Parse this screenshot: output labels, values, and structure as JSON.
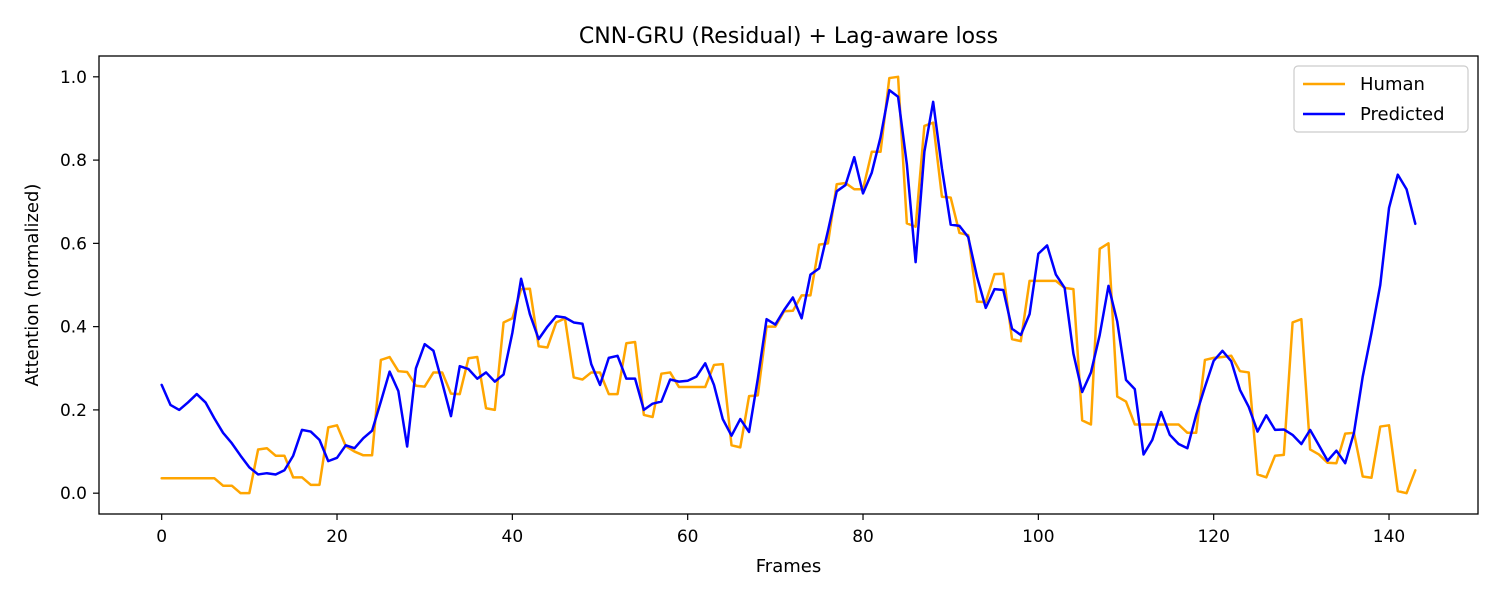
{
  "chart_data": {
    "type": "line",
    "title": "CNN-GRU (Residual) + Lag-aware loss",
    "xlabel": "Frames",
    "ylabel": "Attention (normalized)",
    "xlim": [
      -7.15,
      150.15
    ],
    "ylim": [
      -0.05,
      1.05
    ],
    "xticks": [
      0,
      20,
      40,
      60,
      80,
      100,
      120,
      140
    ],
    "yticks": [
      0.0,
      0.2,
      0.4,
      0.6,
      0.8,
      1.0
    ],
    "ytick_labels": [
      "0.0",
      "0.2",
      "0.4",
      "0.6",
      "0.8",
      "1.0"
    ],
    "grid": false,
    "legend_position": "top-right",
    "series": [
      {
        "name": "Human",
        "color": "#FFA500",
        "x": [
          0,
          1,
          2,
          3,
          4,
          5,
          6,
          7,
          8,
          9,
          10,
          11,
          12,
          13,
          14,
          15,
          16,
          17,
          18,
          19,
          20,
          21,
          22,
          23,
          24,
          25,
          26,
          27,
          28,
          29,
          30,
          31,
          32,
          33,
          34,
          35,
          36,
          37,
          38,
          39,
          40,
          41,
          42,
          43,
          44,
          45,
          46,
          47,
          48,
          49,
          50,
          51,
          52,
          53,
          54,
          55,
          56,
          57,
          58,
          59,
          60,
          61,
          62,
          63,
          64,
          65,
          66,
          67,
          68,
          69,
          70,
          71,
          72,
          73,
          74,
          75,
          76,
          77,
          78,
          79,
          80,
          81,
          82,
          83,
          84,
          85,
          86,
          87,
          88,
          89,
          90,
          91,
          92,
          93,
          94,
          95,
          96,
          97,
          98,
          99,
          100,
          101,
          102,
          103,
          104,
          105,
          106,
          107,
          108,
          109,
          110,
          111,
          112,
          113,
          114,
          115,
          116,
          117,
          118,
          119,
          120,
          121,
          122,
          123,
          124,
          125,
          126,
          127,
          128,
          129,
          130,
          131,
          132,
          133,
          134,
          135,
          136,
          137,
          138,
          139,
          140,
          141,
          142,
          143
        ],
        "values": [
          0.036,
          0.036,
          0.036,
          0.036,
          0.036,
          0.036,
          0.036,
          0.018,
          0.018,
          0.0,
          0.0,
          0.105,
          0.108,
          0.09,
          0.09,
          0.038,
          0.038,
          0.02,
          0.02,
          0.158,
          0.163,
          0.113,
          0.1,
          0.091,
          0.091,
          0.32,
          0.327,
          0.293,
          0.291,
          0.258,
          0.256,
          0.29,
          0.29,
          0.239,
          0.238,
          0.324,
          0.327,
          0.204,
          0.2,
          0.41,
          0.42,
          0.49,
          0.491,
          0.353,
          0.35,
          0.41,
          0.42,
          0.278,
          0.273,
          0.29,
          0.29,
          0.238,
          0.238,
          0.36,
          0.363,
          0.188,
          0.183,
          0.287,
          0.29,
          0.255,
          0.255,
          0.255,
          0.255,
          0.308,
          0.31,
          0.115,
          0.11,
          0.233,
          0.235,
          0.4,
          0.4,
          0.437,
          0.438,
          0.475,
          0.475,
          0.597,
          0.6,
          0.742,
          0.745,
          0.73,
          0.73,
          0.82,
          0.82,
          0.997,
          1.0,
          0.648,
          0.64,
          0.882,
          0.89,
          0.712,
          0.71,
          0.625,
          0.62,
          0.46,
          0.459,
          0.526,
          0.527,
          0.37,
          0.365,
          0.51,
          0.51,
          0.51,
          0.51,
          0.493,
          0.49,
          0.175,
          0.165,
          0.587,
          0.6,
          0.232,
          0.22,
          0.165,
          0.165,
          0.165,
          0.165,
          0.165,
          0.165,
          0.145,
          0.145,
          0.32,
          0.325,
          0.327,
          0.33,
          0.293,
          0.29,
          0.045,
          0.038,
          0.09,
          0.092,
          0.41,
          0.418,
          0.105,
          0.093,
          0.073,
          0.072,
          0.143,
          0.145,
          0.04,
          0.037,
          0.16,
          0.163,
          0.005,
          0.0,
          0.055
        ]
      },
      {
        "name": "Predicted",
        "color": "#0000FF",
        "x": [
          0,
          1,
          2,
          3,
          4,
          5,
          6,
          7,
          8,
          9,
          10,
          11,
          12,
          13,
          14,
          15,
          16,
          17,
          18,
          19,
          20,
          21,
          22,
          23,
          24,
          25,
          26,
          27,
          28,
          29,
          30,
          31,
          32,
          33,
          34,
          35,
          36,
          37,
          38,
          39,
          40,
          41,
          42,
          43,
          44,
          45,
          46,
          47,
          48,
          49,
          50,
          51,
          52,
          53,
          54,
          55,
          56,
          57,
          58,
          59,
          60,
          61,
          62,
          63,
          64,
          65,
          66,
          67,
          68,
          69,
          70,
          71,
          72,
          73,
          74,
          75,
          76,
          77,
          78,
          79,
          80,
          81,
          82,
          83,
          84,
          85,
          86,
          87,
          88,
          89,
          90,
          91,
          92,
          93,
          94,
          95,
          96,
          97,
          98,
          99,
          100,
          101,
          102,
          103,
          104,
          105,
          106,
          107,
          108,
          109,
          110,
          111,
          112,
          113,
          114,
          115,
          116,
          117,
          118,
          119,
          120,
          121,
          122,
          123,
          124,
          125,
          126,
          127,
          128,
          129,
          130,
          131,
          132,
          133,
          134,
          135,
          136,
          137,
          138,
          139,
          140,
          141,
          142,
          143
        ],
        "values": [
          0.26,
          0.212,
          0.2,
          0.218,
          0.238,
          0.218,
          0.18,
          0.145,
          0.12,
          0.09,
          0.062,
          0.045,
          0.048,
          0.045,
          0.055,
          0.09,
          0.152,
          0.148,
          0.128,
          0.077,
          0.085,
          0.115,
          0.108,
          0.132,
          0.15,
          0.22,
          0.292,
          0.245,
          0.112,
          0.3,
          0.358,
          0.342,
          0.265,
          0.185,
          0.305,
          0.298,
          0.275,
          0.29,
          0.268,
          0.285,
          0.385,
          0.515,
          0.43,
          0.37,
          0.4,
          0.425,
          0.422,
          0.41,
          0.407,
          0.31,
          0.26,
          0.325,
          0.33,
          0.275,
          0.275,
          0.2,
          0.215,
          0.22,
          0.273,
          0.268,
          0.27,
          0.28,
          0.312,
          0.26,
          0.178,
          0.138,
          0.178,
          0.147,
          0.275,
          0.418,
          0.405,
          0.44,
          0.47,
          0.42,
          0.525,
          0.54,
          0.63,
          0.725,
          0.74,
          0.807,
          0.72,
          0.77,
          0.855,
          0.968,
          0.952,
          0.79,
          0.555,
          0.82,
          0.94,
          0.78,
          0.645,
          0.642,
          0.615,
          0.52,
          0.445,
          0.49,
          0.488,
          0.395,
          0.38,
          0.43,
          0.575,
          0.595,
          0.525,
          0.493,
          0.335,
          0.243,
          0.29,
          0.38,
          0.498,
          0.412,
          0.272,
          0.25,
          0.093,
          0.128,
          0.195,
          0.14,
          0.118,
          0.108,
          0.188,
          0.255,
          0.318,
          0.342,
          0.317,
          0.248,
          0.207,
          0.148,
          0.187,
          0.152,
          0.153,
          0.14,
          0.118,
          0.152,
          0.115,
          0.078,
          0.102,
          0.072,
          0.145,
          0.28,
          0.385,
          0.5,
          0.685,
          0.765,
          0.73,
          0.647
        ]
      }
    ]
  }
}
